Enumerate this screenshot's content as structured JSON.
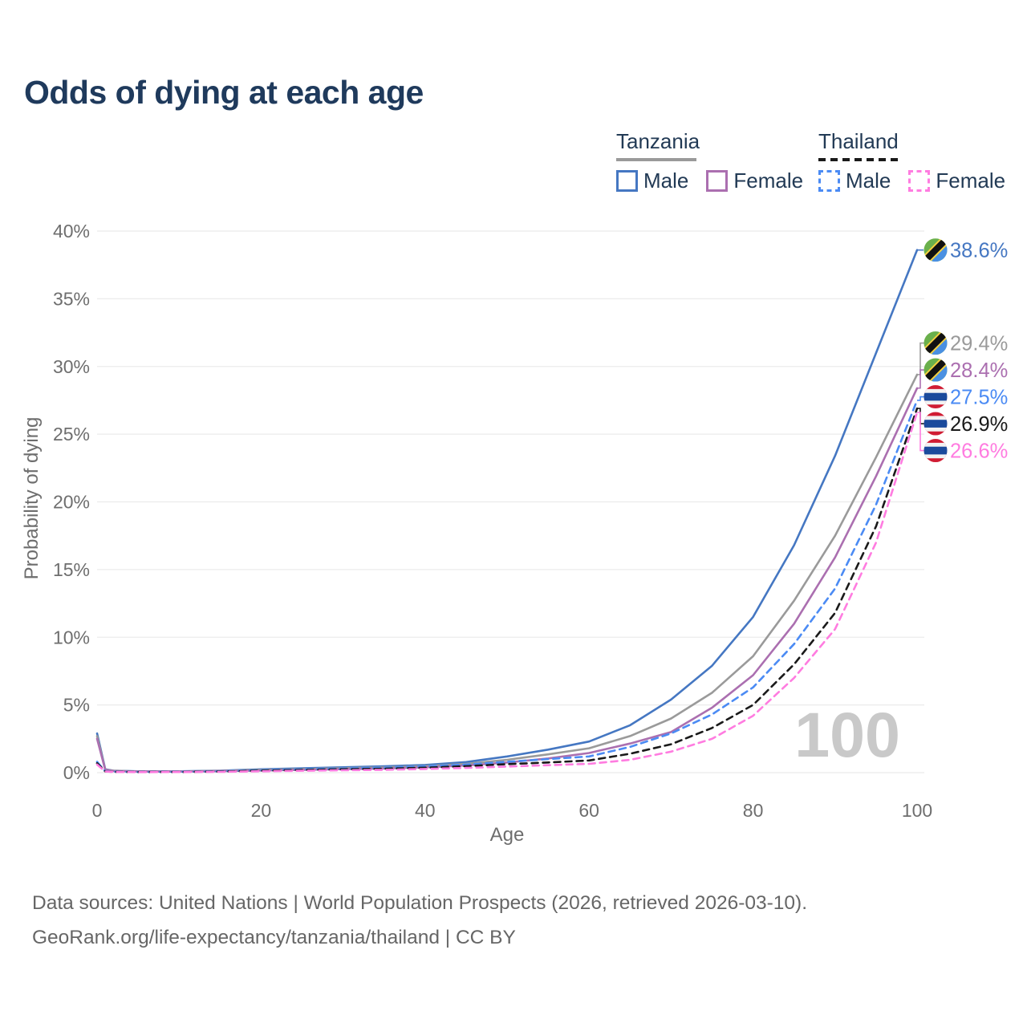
{
  "title": "Odds of dying at each age",
  "legend": {
    "groups": [
      {
        "country": "Tanzania",
        "line_style": "solid",
        "items": [
          {
            "label": "Male",
            "series": 0
          },
          {
            "label": "Female",
            "series": 2
          }
        ]
      },
      {
        "country": "Thailand",
        "line_style": "dashed",
        "items": [
          {
            "label": "Male",
            "series": 3
          },
          {
            "label": "Female",
            "series": 5
          }
        ]
      }
    ]
  },
  "chart_data": {
    "type": "line",
    "title": "Odds of dying at each age",
    "xlabel": "Age",
    "ylabel": "Probability of dying",
    "xlim": [
      0,
      100
    ],
    "ylim_pct": [
      0,
      40
    ],
    "grid": true,
    "x_ticks": [
      0,
      20,
      40,
      60,
      80,
      100
    ],
    "y_ticks": [
      "0%",
      "5%",
      "10%",
      "15%",
      "20%",
      "25%",
      "30%",
      "35%",
      "40%"
    ],
    "watermark": "100",
    "x": [
      0,
      1,
      2,
      5,
      10,
      15,
      20,
      25,
      30,
      35,
      40,
      45,
      50,
      55,
      60,
      65,
      70,
      75,
      80,
      85,
      90,
      95,
      100
    ],
    "series": [
      {
        "name": "Tanzania Male",
        "country": "Tanzania",
        "flag": "tanzania",
        "dash": false,
        "color": "#4577c2",
        "end_label": "38.6%",
        "values": [
          2.9,
          0.25,
          0.15,
          0.1,
          0.1,
          0.15,
          0.25,
          0.32,
          0.4,
          0.47,
          0.57,
          0.78,
          1.2,
          1.7,
          2.3,
          3.5,
          5.4,
          7.9,
          11.5,
          16.8,
          23.4,
          31.0,
          38.6
        ]
      },
      {
        "name": "Tanzania Both sexes",
        "country": "Tanzania",
        "flag": "tanzania",
        "dash": false,
        "color": "#9a9a9a",
        "end_label": "29.4%",
        "values": [
          2.7,
          0.22,
          0.14,
          0.09,
          0.09,
          0.13,
          0.2,
          0.26,
          0.33,
          0.39,
          0.48,
          0.65,
          0.95,
          1.35,
          1.8,
          2.7,
          4.0,
          5.9,
          8.6,
          12.7,
          17.5,
          23.3,
          29.4
        ]
      },
      {
        "name": "Tanzania Female",
        "country": "Tanzania",
        "flag": "tanzania",
        "dash": false,
        "color": "#ab6fb0",
        "end_label": "28.4%",
        "values": [
          2.5,
          0.2,
          0.12,
          0.08,
          0.08,
          0.11,
          0.16,
          0.21,
          0.26,
          0.31,
          0.4,
          0.53,
          0.75,
          1.05,
          1.45,
          2.15,
          3.0,
          4.8,
          7.2,
          11.0,
          15.9,
          21.9,
          28.4
        ]
      },
      {
        "name": "Thailand Male",
        "country": "Thailand",
        "flag": "thailand",
        "dash": true,
        "color": "#4b8bf4",
        "end_label": "27.5%",
        "values": [
          0.8,
          0.1,
          0.07,
          0.05,
          0.06,
          0.1,
          0.18,
          0.25,
          0.31,
          0.37,
          0.46,
          0.6,
          0.8,
          1.0,
          1.2,
          1.9,
          2.9,
          4.3,
          6.3,
          9.5,
          13.6,
          19.8,
          27.5
        ]
      },
      {
        "name": "Thailand Both sexes",
        "country": "Thailand",
        "flag": "thailand",
        "dash": true,
        "color": "#1a1a1a",
        "end_label": "26.9%",
        "values": [
          0.7,
          0.09,
          0.06,
          0.05,
          0.05,
          0.08,
          0.14,
          0.2,
          0.25,
          0.29,
          0.37,
          0.48,
          0.63,
          0.75,
          0.9,
          1.4,
          2.1,
          3.3,
          5.0,
          8.0,
          11.8,
          18.2,
          26.9
        ]
      },
      {
        "name": "Thailand Female",
        "country": "Thailand",
        "flag": "thailand",
        "dash": true,
        "color": "#ff7ce0",
        "end_label": "26.6%",
        "values": [
          0.6,
          0.08,
          0.05,
          0.04,
          0.05,
          0.06,
          0.1,
          0.14,
          0.18,
          0.21,
          0.27,
          0.35,
          0.45,
          0.55,
          0.65,
          0.95,
          1.55,
          2.5,
          4.2,
          7.0,
          10.6,
          17.0,
          26.6
        ]
      }
    ],
    "flag_colors": {
      "tanzania": {
        "green": "#6ab04c",
        "blue": "#4a90e2",
        "black": "#111111",
        "yellow": "#f4d03f"
      },
      "thailand": {
        "red": "#d01c33",
        "white": "#f2f2f2",
        "blue": "#1b4a9c"
      }
    }
  },
  "colors": {
    "title": "#1f3a5c",
    "legend_text": "#223a55",
    "axis_text": "#6e6e6e",
    "gridline": "#ebebeb",
    "watermark": "#c9c9c9",
    "footer_text": "#666666"
  },
  "footer": {
    "line1": "Data sources: United Nations | World Population Prospects (2026, retrieved 2026-03-10).",
    "line2": "GeoRank.org/life-expectancy/tanzania/thailand | CC BY"
  }
}
